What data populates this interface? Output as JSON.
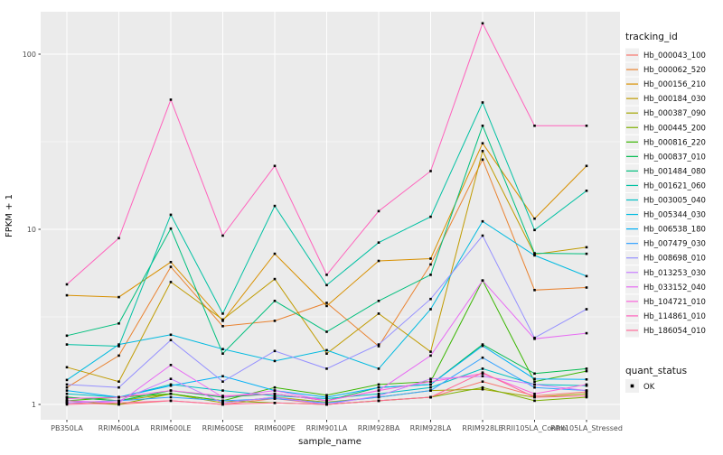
{
  "chart_data": {
    "type": "line",
    "title": "",
    "xlabel": "sample_name",
    "ylabel": "FPKM + 1",
    "y_scale": "log10",
    "y_ticks": [
      1,
      10,
      100
    ],
    "y_minor_gridlines": [
      3.1623,
      31.623
    ],
    "ylim": [
      0.82,
      170
    ],
    "grid": "on",
    "legend_position": "right",
    "marker": {
      "shape": "square",
      "color": "#000000",
      "size": 2.6
    },
    "categories": [
      "PB350LA",
      "RRIM600LA",
      "RRIM600LE",
      "RRIM600SE",
      "RRIM600PE",
      "RRIM901LA",
      "RRIM928BA",
      "RRIM928LA",
      "RRIM928LE",
      "RRII105LA_Control",
      "RRII105LA_Stressed"
    ],
    "series": [
      {
        "name": "Hb_000043_100",
        "color": "#F8766D",
        "values": [
          1.02,
          1.0,
          1.05,
          1.0,
          1.08,
          1.0,
          1.05,
          1.1,
          1.35,
          1.12,
          1.18
        ]
      },
      {
        "name": "Hb_000062_520",
        "color": "#EA8331",
        "values": [
          1.25,
          1.9,
          6.1,
          2.8,
          3.0,
          3.8,
          2.15,
          6.3,
          25,
          4.5,
          4.65
        ]
      },
      {
        "name": "Hb_000156_210",
        "color": "#D89000",
        "values": [
          4.2,
          4.1,
          6.5,
          3.0,
          7.25,
          3.65,
          6.6,
          6.8,
          31,
          11.5,
          23
        ]
      },
      {
        "name": "Hb_000184_030",
        "color": "#C09B00",
        "values": [
          1.63,
          1.35,
          5.0,
          3.05,
          5.2,
          1.95,
          3.3,
          2.0,
          28,
          7.2,
          7.9
        ]
      },
      {
        "name": "Hb_000387_090",
        "color": "#A3A500",
        "values": [
          1.1,
          1.05,
          1.15,
          1.02,
          1.1,
          1.03,
          1.1,
          1.2,
          1.22,
          1.1,
          1.15
        ]
      },
      {
        "name": "Hb_000445_200",
        "color": "#7CAE00",
        "values": [
          1.05,
          1.0,
          1.15,
          1.05,
          1.02,
          1.0,
          1.05,
          1.1,
          1.25,
          1.05,
          1.1
        ]
      },
      {
        "name": "Hb_000816_220",
        "color": "#39B600",
        "values": [
          1.05,
          1.1,
          1.15,
          1.05,
          1.25,
          1.13,
          1.3,
          1.35,
          5.1,
          1.35,
          1.55
        ]
      },
      {
        "name": "Hb_000837_010",
        "color": "#00BB4E",
        "values": [
          1.1,
          1.05,
          1.2,
          1.1,
          1.15,
          1.05,
          1.25,
          1.3,
          2.2,
          1.5,
          1.6
        ]
      },
      {
        "name": "Hb_001484_080",
        "color": "#00BF7D",
        "values": [
          2.47,
          2.9,
          10.1,
          1.95,
          3.9,
          2.6,
          3.9,
          5.5,
          39,
          7.3,
          7.25
        ]
      },
      {
        "name": "Hb_001621_060",
        "color": "#00C1A3",
        "values": [
          2.2,
          2.15,
          12.1,
          3.3,
          13.6,
          4.8,
          8.4,
          11.8,
          53,
          9.9,
          16.6
        ]
      },
      {
        "name": "Hb_003005_040",
        "color": "#00BFC4",
        "values": [
          1.15,
          1.1,
          1.3,
          1.2,
          1.12,
          1.08,
          1.15,
          1.25,
          1.6,
          1.3,
          1.28
        ]
      },
      {
        "name": "Hb_005344_030",
        "color": "#00BAE0",
        "values": [
          1.38,
          2.2,
          2.5,
          2.07,
          1.77,
          2.04,
          1.6,
          3.5,
          11.1,
          7.1,
          5.4
        ]
      },
      {
        "name": "Hb_006538_180",
        "color": "#00B0F6",
        "values": [
          1.2,
          1.1,
          1.28,
          1.45,
          1.2,
          1.1,
          1.25,
          1.3,
          2.16,
          1.4,
          1.39
        ]
      },
      {
        "name": "Hb_007479_030",
        "color": "#35A2FF",
        "values": [
          1.02,
          1.05,
          1.1,
          1.05,
          1.08,
          1.02,
          1.1,
          1.2,
          1.85,
          1.25,
          1.2
        ]
      },
      {
        "name": "Hb_008698_010",
        "color": "#9590FF",
        "values": [
          1.3,
          1.25,
          2.33,
          1.35,
          2.02,
          1.6,
          2.2,
          4.0,
          9.2,
          2.4,
          3.5
        ]
      },
      {
        "name": "Hb_013253_030",
        "color": "#C77CFF",
        "values": [
          1.02,
          1.05,
          1.4,
          1.02,
          1.1,
          1.0,
          1.12,
          1.4,
          1.45,
          1.3,
          1.2
        ]
      },
      {
        "name": "Hb_033152_040",
        "color": "#E76BF3",
        "values": [
          1.05,
          1.02,
          1.68,
          1.1,
          1.2,
          1.05,
          1.2,
          1.9,
          5.1,
          2.37,
          2.55
        ]
      },
      {
        "name": "Hb_104721_010",
        "color": "#FA62DB",
        "values": [
          1.08,
          1.1,
          1.2,
          1.12,
          1.15,
          1.05,
          1.2,
          1.35,
          1.5,
          1.15,
          1.3
        ]
      },
      {
        "name": "Hb_114861_010",
        "color": "#FF62BC",
        "values": [
          4.85,
          8.9,
          55,
          9.2,
          23,
          5.5,
          12.7,
          21.5,
          150,
          39,
          39
        ]
      },
      {
        "name": "Hb_186054_010",
        "color": "#FF6A98",
        "values": [
          1.0,
          1.02,
          1.05,
          1.0,
          1.02,
          1.0,
          1.05,
          1.1,
          1.52,
          1.1,
          1.12
        ]
      }
    ],
    "legend": {
      "tracking_title": "tracking_id",
      "quant_title": "quant_status",
      "quant_items": [
        "OK"
      ]
    },
    "layout_hints": {
      "panel_bg": "#EBEBEB",
      "grid_color": "#FFFFFF",
      "legend_key_bg": "#F0F0F0",
      "tick_color": "#333333"
    }
  }
}
